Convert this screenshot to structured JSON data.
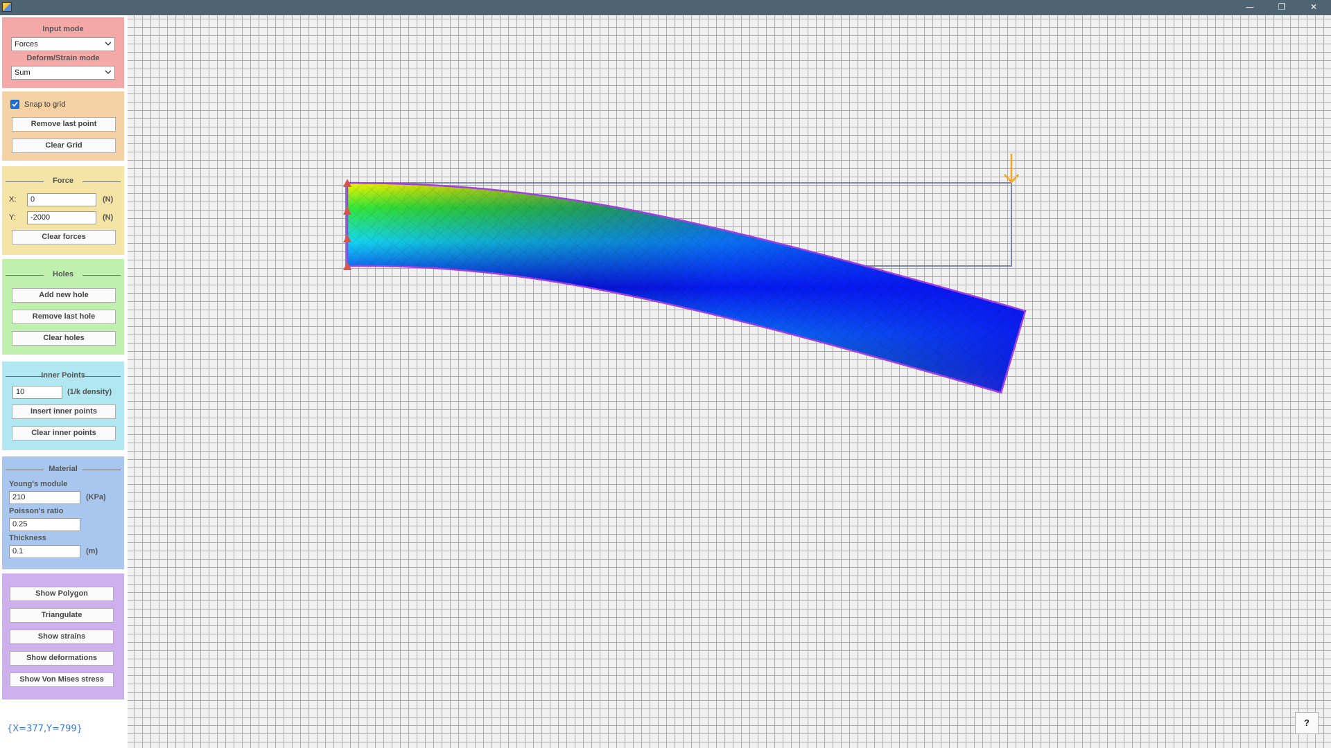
{
  "window": {
    "minimize_icon": "minimize-icon",
    "restore_icon": "restore-icon",
    "close_icon": "close-icon",
    "minimize_glyph": "—",
    "restore_glyph": "❐",
    "close_glyph": "✕"
  },
  "input_mode": {
    "title": "Input mode",
    "value": "Forces",
    "deform_title": "Deform/Strain mode",
    "deform_value": "Sum",
    "bg": "#f4a9a8"
  },
  "grid_section": {
    "snap_label": "Snap to grid",
    "snap_checked": true,
    "remove_last_point": "Remove last point",
    "clear_grid": "Clear Grid",
    "bg": "#f4d2a6"
  },
  "force": {
    "title": "Force",
    "x_label": "X:",
    "x_value": "0",
    "x_unit": "(N)",
    "y_label": "Y:",
    "y_value": "-2000",
    "y_unit": "(N)",
    "clear_forces": "Clear forces",
    "bg": "#f4e4a6"
  },
  "holes": {
    "title": "Holes",
    "add": "Add new hole",
    "remove": "Remove last hole",
    "clear": "Clear holes",
    "bg": "#bff0ae"
  },
  "inner_points": {
    "title": "Inner Points",
    "value": "10",
    "unit": "(1/k density)",
    "insert": "Insert inner points",
    "clear": "Clear inner points",
    "bg": "#b1e7f0"
  },
  "material": {
    "title": "Material",
    "young_label": "Young's module",
    "young_value": "210",
    "young_unit": "(KPa)",
    "poisson_label": "Poisson's ratio",
    "poisson_value": "0.25",
    "thickness_label": "Thickness",
    "thickness_value": "0.1",
    "thickness_unit": "(m)",
    "bg": "#a8c6ee"
  },
  "actions": {
    "show_polygon": "Show Polygon",
    "triangulate": "Triangulate",
    "show_strains": "Show strains",
    "show_deformations": "Show deformations",
    "show_von_mises": "Show Von Mises stress",
    "bg": "#cfb0ee"
  },
  "status": {
    "coords": "{X=377,Y=799}"
  },
  "help": {
    "label": "?"
  },
  "colors": {
    "grid_line": "#a9a9a9",
    "undeformed_outline": "#7b85a8",
    "deformed_outline": "#a23ee0",
    "support_marker": "#d9534f",
    "force_arrow": "#f5a623",
    "strain_low": "#0010f0",
    "strain_high": "#f4f400"
  }
}
